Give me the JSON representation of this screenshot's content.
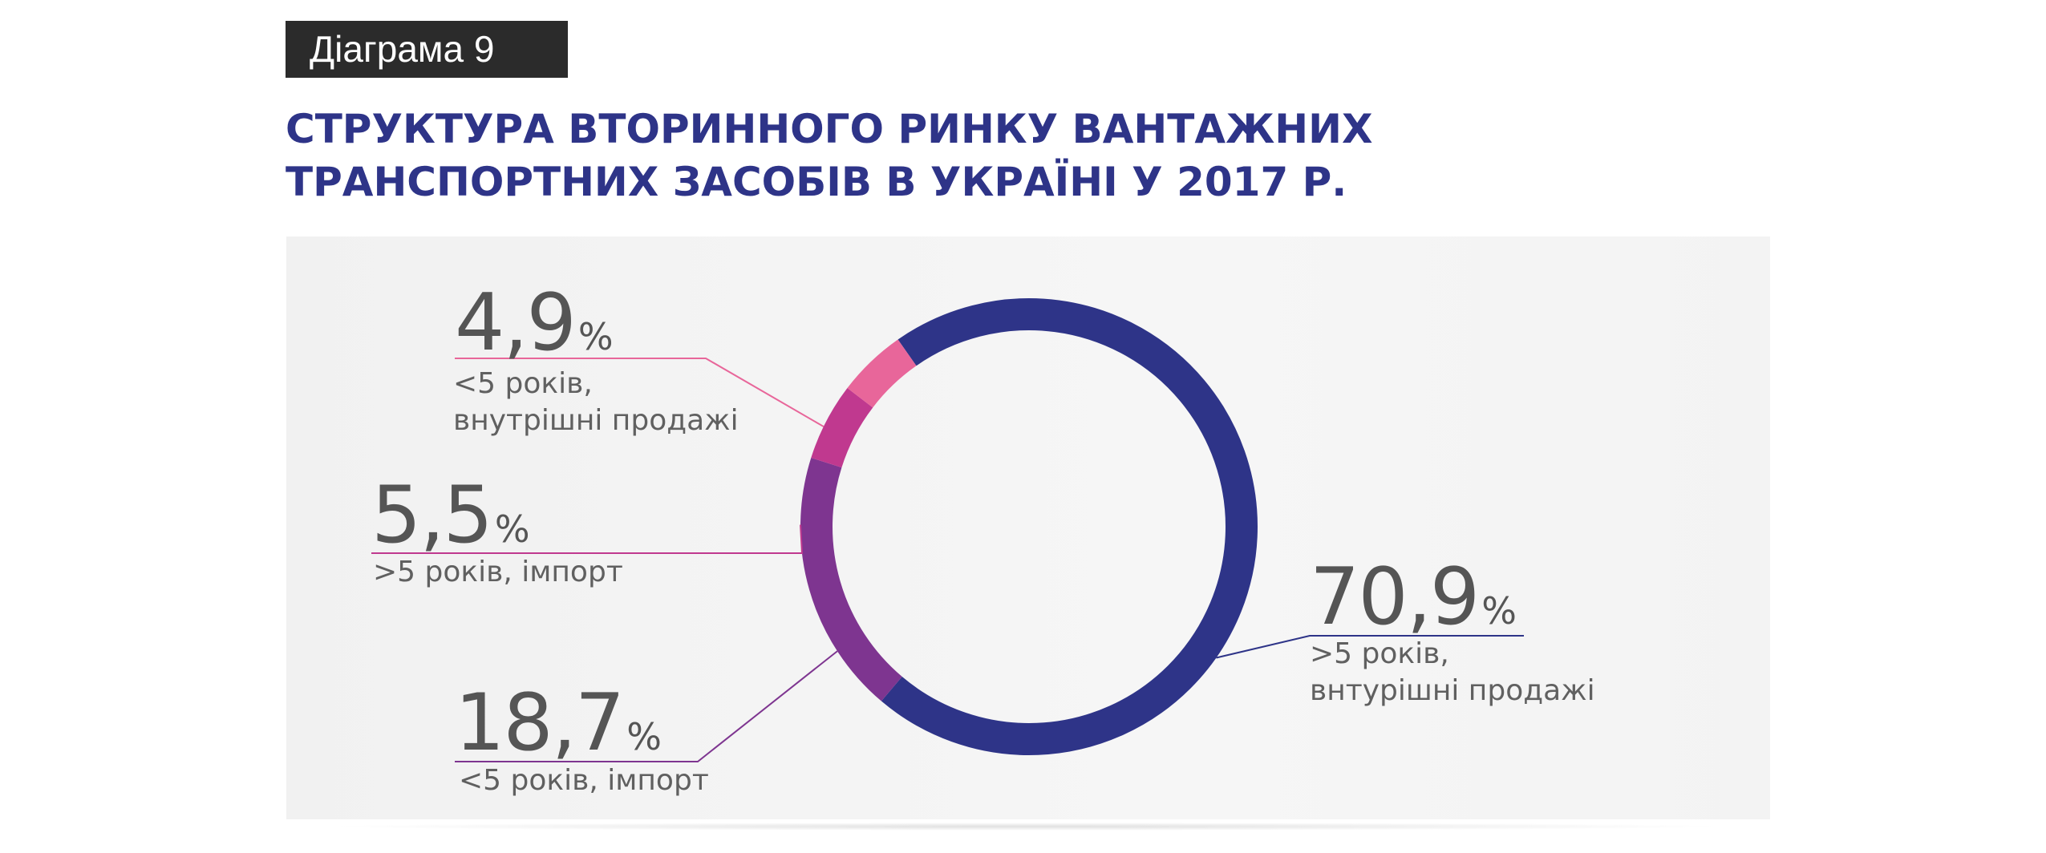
{
  "badge": "Діаграма 9",
  "title_lines": [
    "СТРУКТУРА ВТОРИННОГО РИНКУ ВАНТАЖНИХ",
    "ТРАНСПОРТНИХ ЗАСОБІВ В УКРАЇНІ У 2017 Р."
  ],
  "chart_data": {
    "type": "pie",
    "variant": "donut",
    "unit": "%",
    "categories": [
      ">5 років, внутрішні продажі",
      "<5 років, імпорт",
      ">5 років, імпорт",
      "<5 років, внутрішні продажі"
    ],
    "values": [
      70.9,
      18.7,
      5.5,
      4.9
    ],
    "labels": [
      {
        "value": "70,9",
        "symbol": "%",
        "lines": [
          ">5 років,",
          "внтурішні продажі"
        ],
        "color": "#2e3488"
      },
      {
        "value": "18,7",
        "symbol": "%",
        "lines": [
          "<5 років, імпорт"
        ],
        "color": "#7e3590"
      },
      {
        "value": "5,5",
        "symbol": "%",
        "lines": [
          ">5 років, імпорт"
        ],
        "color": "#c0398f"
      },
      {
        "value": "4,9",
        "symbol": "%",
        "lines": [
          "<5 років,",
          "внутрішні продажі"
        ],
        "color": "#e8669a"
      }
    ]
  }
}
